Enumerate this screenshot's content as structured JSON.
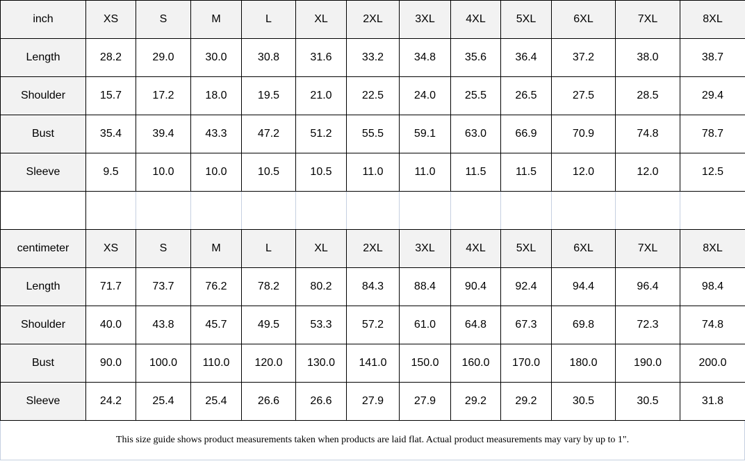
{
  "sizes": [
    "XS",
    "S",
    "M",
    "L",
    "XL",
    "2XL",
    "3XL",
    "4XL",
    "5XL",
    "6XL",
    "7XL",
    "8XL"
  ],
  "tables": [
    {
      "unit": "inch",
      "rows": [
        {
          "label": "Length",
          "values": [
            "28.2",
            "29.0",
            "30.0",
            "30.8",
            "31.6",
            "33.2",
            "34.8",
            "35.6",
            "36.4",
            "37.2",
            "38.0",
            "38.7"
          ]
        },
        {
          "label": "Shoulder",
          "values": [
            "15.7",
            "17.2",
            "18.0",
            "19.5",
            "21.0",
            "22.5",
            "24.0",
            "25.5",
            "26.5",
            "27.5",
            "28.5",
            "29.4"
          ]
        },
        {
          "label": "Bust",
          "values": [
            "35.4",
            "39.4",
            "43.3",
            "47.2",
            "51.2",
            "55.5",
            "59.1",
            "63.0",
            "66.9",
            "70.9",
            "74.8",
            "78.7"
          ]
        },
        {
          "label": "Sleeve",
          "values": [
            "9.5",
            "10.0",
            "10.0",
            "10.5",
            "10.5",
            "11.0",
            "11.0",
            "11.5",
            "11.5",
            "12.0",
            "12.0",
            "12.5"
          ]
        }
      ]
    },
    {
      "unit": "centimeter",
      "rows": [
        {
          "label": "Length",
          "values": [
            "71.7",
            "73.7",
            "76.2",
            "78.2",
            "80.2",
            "84.3",
            "88.4",
            "90.4",
            "92.4",
            "94.4",
            "96.4",
            "98.4"
          ]
        },
        {
          "label": "Shoulder",
          "values": [
            "40.0",
            "43.8",
            "45.7",
            "49.5",
            "53.3",
            "57.2",
            "61.0",
            "64.8",
            "67.3",
            "69.8",
            "72.3",
            "74.8"
          ]
        },
        {
          "label": "Bust",
          "values": [
            "90.0",
            "100.0",
            "110.0",
            "120.0",
            "130.0",
            "141.0",
            "150.0",
            "160.0",
            "170.0",
            "180.0",
            "190.0",
            "200.0"
          ]
        },
        {
          "label": "Sleeve",
          "values": [
            "24.2",
            "25.4",
            "25.4",
            "26.6",
            "26.6",
            "27.9",
            "27.9",
            "29.2",
            "29.2",
            "30.5",
            "30.5",
            "31.8"
          ]
        }
      ]
    }
  ],
  "footer": "This size guide shows product measurements taken when products are laid flat. Actual product measurements may vary by up to 1\"."
}
